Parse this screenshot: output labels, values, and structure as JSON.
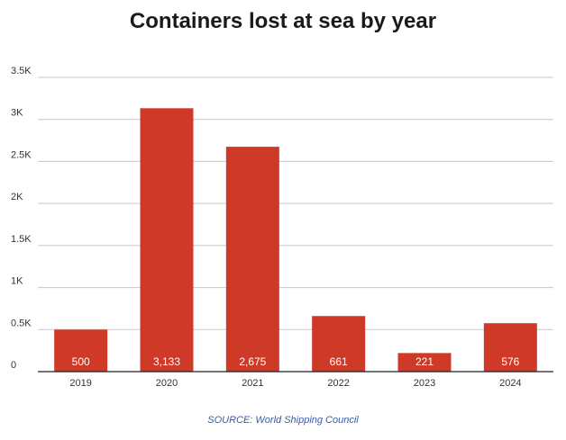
{
  "chart_data": {
    "type": "bar",
    "title": "Containers lost at sea by year",
    "categories": [
      "2019",
      "2020",
      "2021",
      "2022",
      "2023",
      "2024"
    ],
    "values": [
      500,
      3133,
      2675,
      661,
      221,
      576
    ],
    "data_labels": [
      "500",
      "3,133",
      "2,675",
      "661",
      "221",
      "576"
    ],
    "ylim": [
      0,
      3500
    ],
    "yticks": [
      0,
      500,
      1000,
      1500,
      2000,
      2500,
      3000,
      3500
    ],
    "ytick_labels": [
      "0",
      "0.5K",
      "1K",
      "1.5K",
      "2K",
      "2.5K",
      "3K",
      "3.5K"
    ],
    "xlabel": "",
    "ylabel": "",
    "grid": true,
    "bar_color": "#cf3a28",
    "source": "SOURCE: World Shipping Council"
  }
}
